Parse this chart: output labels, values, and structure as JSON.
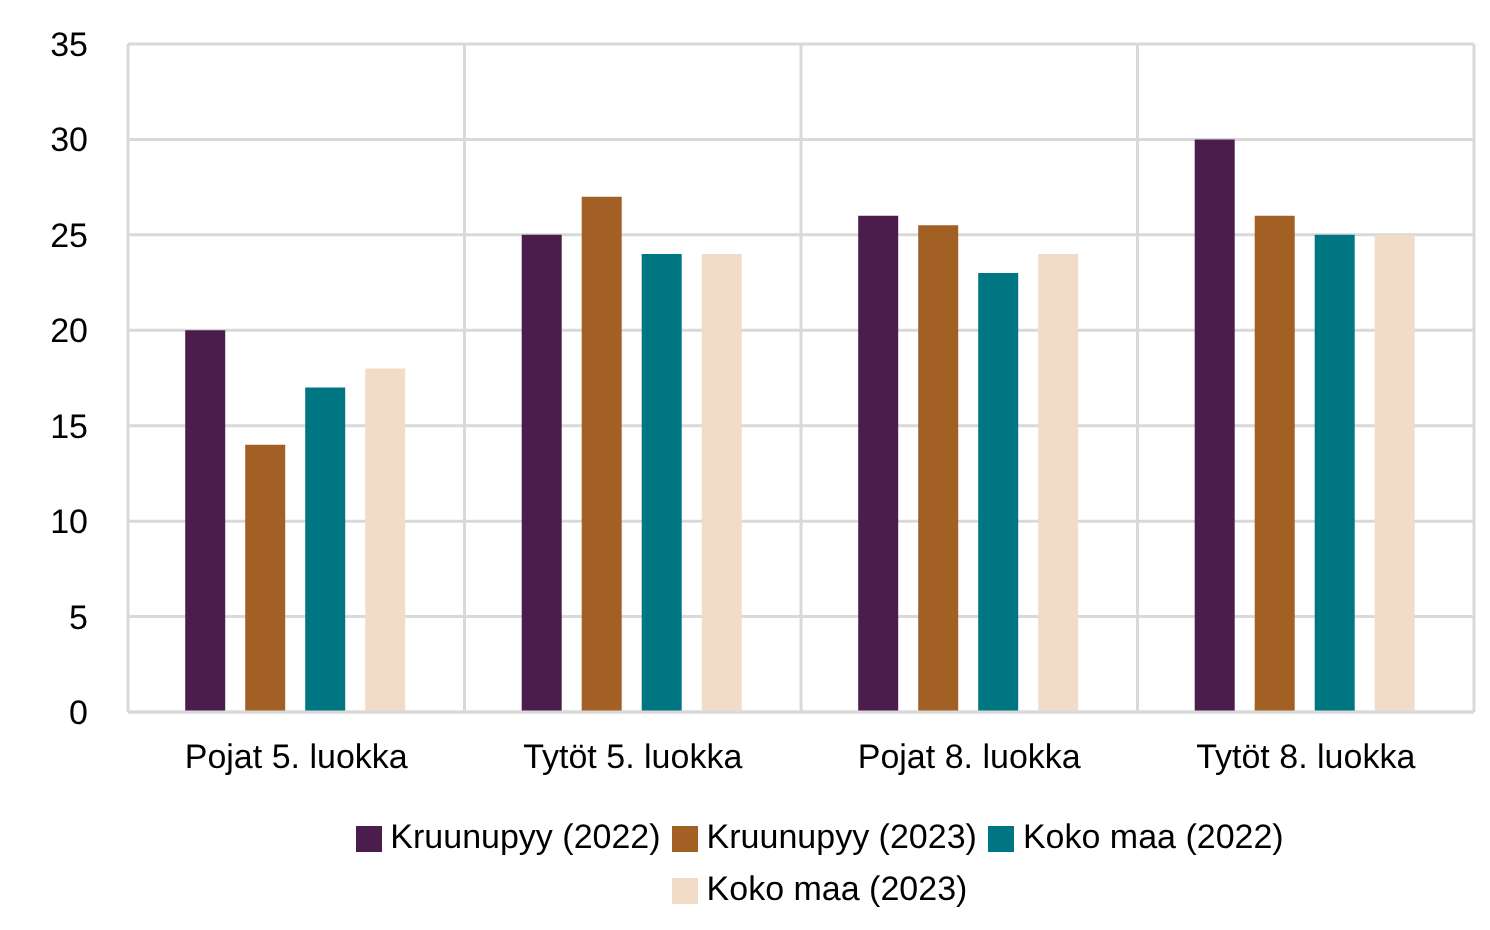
{
  "chart_data": {
    "type": "bar",
    "categories": [
      "Pojat 5. luokka",
      "Tytöt 5. luokka",
      "Pojat 8. luokka",
      "Tytöt 8. luokka"
    ],
    "series": [
      {
        "name": "Kruunupyy (2022)",
        "color": "#4b1d4d",
        "values": [
          20,
          25,
          26,
          30
        ]
      },
      {
        "name": "Kruunupyy (2023)",
        "color": "#a26025",
        "values": [
          14,
          27,
          25.5,
          26
        ]
      },
      {
        "name": "Koko maa (2022)",
        "color": "#007682",
        "values": [
          17,
          24,
          23,
          25
        ]
      },
      {
        "name": "Koko maa (2023)",
        "color": "#f2dcc8",
        "values": [
          18,
          24,
          24,
          25
        ]
      }
    ],
    "ylim": [
      0,
      35
    ],
    "yticks": [
      0,
      5,
      10,
      15,
      20,
      25,
      30,
      35
    ],
    "grid": true,
    "legend": "bottom"
  }
}
